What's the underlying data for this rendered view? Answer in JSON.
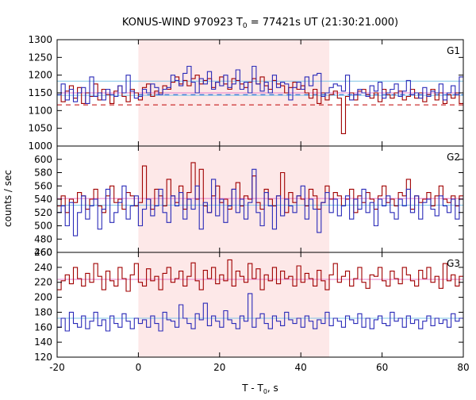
{
  "title": "KONUS-WIND 970923 T",
  "title_sub": "0",
  "title_rest": " = 77421s UT (21:30:21.000)",
  "xlabel_main": "T - T",
  "xlabel_sub": "0",
  "xlabel_rest": ", s",
  "ylabel": "counts / sec",
  "colors": {
    "red": "#a00000",
    "blue": "#2a2ab8",
    "band": "#fde8e8",
    "pink": "#e67ec8",
    "cyan": "#7ec4e6",
    "dashblue": "#1f5fd0",
    "dashred": "#c00000"
  },
  "chart_data": [
    {
      "type": "line",
      "panel": "G1",
      "xlim": [
        -20,
        80
      ],
      "ylim": [
        1000,
        1300
      ],
      "yticks": [
        1000,
        1050,
        1100,
        1150,
        1200,
        1250,
        1300
      ],
      "xticks": [
        -20,
        0,
        20,
        40,
        60,
        80
      ],
      "highlight_x": [
        0,
        47
      ],
      "x_start": -20,
      "bin_width": 1,
      "series": [
        {
          "values": [
            1150,
            1125,
            1155,
            1170,
            1135,
            1165,
            1120,
            1150,
            1140,
            1175,
            1130,
            1160,
            1145,
            1120,
            1155,
            1170,
            1140,
            1125,
            1160,
            1150,
            1130,
            1165,
            1175,
            1140,
            1155,
            1150,
            1170,
            1160,
            1180,
            1195,
            1175,
            1185,
            1170,
            1190,
            1200,
            1175,
            1185,
            1190,
            1165,
            1180,
            1195,
            1175,
            1160,
            1190,
            1185,
            1175,
            1165,
            1180,
            1190,
            1175,
            1195,
            1170,
            1160,
            1185,
            1175,
            1170,
            1150,
            1165,
            1180,
            1160,
            1170,
            1150,
            1135,
            1160,
            1120,
            1150,
            1130,
            1145,
            1155,
            1135,
            1035,
            1140,
            1150,
            1130,
            1155,
            1160,
            1145,
            1135,
            1150,
            1125,
            1160,
            1145,
            1135,
            1150,
            1155,
            1130,
            1140,
            1160,
            1135,
            1150,
            1125,
            1145,
            1160,
            1130,
            1150,
            1120,
            1145,
            1135,
            1150,
            1120
          ]
        },
        {
          "values": [
            1145,
            1175,
            1130,
            1160,
            1125,
            1150,
            1165,
            1120,
            1195,
            1140,
            1150,
            1130,
            1160,
            1145,
            1140,
            1170,
            1150,
            1200,
            1155,
            1135,
            1140,
            1160,
            1150,
            1175,
            1165,
            1145,
            1160,
            1165,
            1200,
            1185,
            1170,
            1205,
            1225,
            1180,
            1150,
            1190,
            1175,
            1210,
            1160,
            1180,
            1170,
            1200,
            1165,
            1175,
            1215,
            1160,
            1180,
            1150,
            1225,
            1175,
            1155,
            1180,
            1150,
            1200,
            1165,
            1180,
            1175,
            1130,
            1165,
            1180,
            1160,
            1195,
            1170,
            1200,
            1205,
            1140,
            1150,
            1165,
            1175,
            1170,
            1155,
            1200,
            1130,
            1145,
            1160,
            1150,
            1140,
            1170,
            1155,
            1180,
            1135,
            1150,
            1160,
            1175,
            1140,
            1155,
            1185,
            1145,
            1150,
            1135,
            1165,
            1140,
            1155,
            1150,
            1175,
            1130,
            1150,
            1170,
            1145,
            1195
          ]
        }
      ],
      "hlines": [
        {
          "y": 1143
        },
        {
          "y": 1150
        },
        {
          "y": 1183
        },
        {
          "y": 1145,
          "dashed": true,
          "x_from": 0
        },
        {
          "y": 1116,
          "dashed": true,
          "x_from": -20
        }
      ]
    },
    {
      "type": "line",
      "panel": "G2",
      "xlim": [
        -20,
        80
      ],
      "ylim": [
        460,
        620
      ],
      "yticks": [
        460,
        480,
        500,
        520,
        540,
        560,
        580,
        600
      ],
      "xticks": [
        -20,
        0,
        20,
        40,
        60,
        80
      ],
      "highlight_x": [
        0,
        47
      ],
      "x_start": -20,
      "bin_width": 1,
      "series": [
        {
          "values": [
            530,
            545,
            520,
            540,
            535,
            550,
            545,
            525,
            540,
            555,
            530,
            520,
            545,
            560,
            535,
            540,
            525,
            550,
            545,
            530,
            535,
            590,
            540,
            525,
            555,
            545,
            530,
            570,
            545,
            535,
            560,
            525,
            550,
            595,
            540,
            585,
            530,
            520,
            545,
            560,
            535,
            540,
            525,
            555,
            565,
            530,
            545,
            540,
            575,
            535,
            525,
            555,
            540,
            530,
            545,
            580,
            520,
            550,
            535,
            545,
            540,
            530,
            555,
            545,
            525,
            535,
            560,
            540,
            550,
            545,
            530,
            540,
            555,
            520,
            545,
            535,
            550,
            540,
            525,
            545,
            560,
            535,
            540,
            530,
            550,
            545,
            570,
            525,
            545,
            535,
            540,
            550,
            530,
            545,
            560,
            540,
            535,
            545,
            530,
            545
          ]
        },
        {
          "values": [
            520,
            530,
            500,
            535,
            485,
            520,
            545,
            510,
            530,
            540,
            495,
            525,
            555,
            505,
            520,
            535,
            560,
            510,
            530,
            545,
            500,
            525,
            540,
            515,
            530,
            555,
            520,
            505,
            545,
            530,
            550,
            510,
            540,
            525,
            560,
            495,
            535,
            520,
            570,
            515,
            540,
            505,
            530,
            555,
            520,
            540,
            510,
            535,
            585,
            520,
            500,
            550,
            530,
            495,
            545,
            515,
            540,
            530,
            520,
            545,
            560,
            510,
            540,
            525,
            490,
            535,
            550,
            520,
            540,
            515,
            530,
            545,
            510,
            540,
            525,
            555,
            520,
            535,
            500,
            540,
            530,
            545,
            520,
            510,
            540,
            530,
            555,
            520,
            545,
            510,
            535,
            540,
            525,
            515,
            545,
            530,
            520,
            540,
            510,
            540
          ]
        }
      ],
      "hlines": [
        {
          "y": 541
        },
        {
          "y": 531
        }
      ]
    },
    {
      "type": "line",
      "panel": "G3",
      "xlim": [
        -20,
        80
      ],
      "ylim": [
        120,
        260
      ],
      "yticks": [
        120,
        140,
        160,
        180,
        200,
        220,
        240,
        260
      ],
      "xticks": [
        -20,
        0,
        20,
        40,
        60,
        80
      ],
      "highlight_x": [
        0,
        47
      ],
      "x_start": -20,
      "bin_width": 1,
      "series": [
        {
          "values": [
            210,
            222,
            230,
            218,
            240,
            225,
            215,
            232,
            220,
            245,
            228,
            210,
            235,
            222,
            215,
            240,
            225,
            208,
            230,
            245,
            220,
            215,
            238,
            222,
            228,
            210,
            232,
            240,
            220,
            225,
            235,
            215,
            228,
            246,
            222,
            210,
            236,
            225,
            240,
            218,
            230,
            222,
            250,
            215,
            235,
            228,
            220,
            245,
            225,
            238,
            210,
            230,
            222,
            240,
            218,
            235,
            225,
            228,
            215,
            242,
            220,
            232,
            225,
            215,
            236,
            222,
            210,
            230,
            245,
            220,
            228,
            235,
            215,
            225,
            240,
            220,
            212,
            230,
            228,
            240,
            222,
            215,
            235,
            225,
            218,
            240,
            230,
            222,
            215,
            236,
            225,
            240,
            220,
            228,
            212,
            245,
            222,
            230,
            215,
            228
          ]
        },
        {
          "values": [
            160,
            172,
            155,
            180,
            165,
            160,
            175,
            158,
            168,
            180,
            162,
            170,
            155,
            175,
            165,
            160,
            178,
            168,
            158,
            172,
            165,
            170,
            160,
            175,
            165,
            155,
            180,
            170,
            168,
            160,
            190,
            172,
            165,
            158,
            178,
            170,
            192,
            162,
            175,
            168,
            160,
            182,
            170,
            165,
            158,
            175,
            168,
            205,
            160,
            172,
            178,
            165,
            158,
            175,
            168,
            162,
            180,
            170,
            165,
            172,
            160,
            175,
            168,
            158,
            170,
            165,
            180,
            162,
            172,
            168,
            160,
            175,
            170,
            165,
            178,
            160,
            172,
            158,
            170,
            175,
            165,
            162,
            180,
            168,
            172,
            160,
            175,
            165,
            170,
            158,
            168,
            175,
            162,
            172,
            165,
            170,
            160,
            178,
            168,
            172
          ]
        }
      ],
      "hlines": [
        {
          "y": 224
        },
        {
          "y": 172
        }
      ]
    }
  ]
}
